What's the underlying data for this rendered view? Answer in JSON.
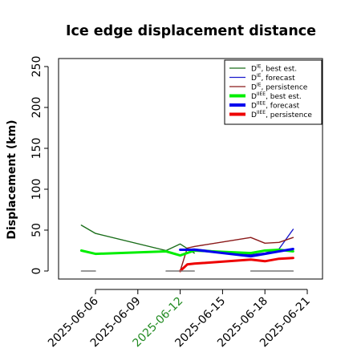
{
  "chart_data": {
    "type": "line",
    "title": "Ice edge displacement distance",
    "xlabel": "",
    "ylabel": "Displacement (km)",
    "ylim": [
      0,
      260
    ],
    "y_ticks": [
      0,
      50,
      100,
      150,
      200,
      250
    ],
    "x_ticks": [
      {
        "label": "2025-06-06",
        "color": "#000000"
      },
      {
        "label": "2025-06-09",
        "color": "#000000"
      },
      {
        "label": "2025-06-12",
        "color": "#228B22"
      },
      {
        "label": "2025-06-15",
        "color": "#000000"
      },
      {
        "label": "2025-06-18",
        "color": "#000000"
      },
      {
        "label": "2025-06-21",
        "color": "#000000"
      }
    ],
    "grid": false,
    "legend_position": "top-right",
    "legend": [
      {
        "sym": "D",
        "sup": "IE",
        "text": ", best est.",
        "color": "#1a6e1a",
        "weight": "thin"
      },
      {
        "sym": "D",
        "sup": "IE",
        "text": ", forecast",
        "color": "#1a1acc",
        "weight": "thin"
      },
      {
        "sym": "D",
        "sup": "IE",
        "text": ", persistence",
        "color": "#8b1a1a",
        "weight": "thin"
      },
      {
        "sym": "D",
        "sup": "IIEE",
        "text": ", best est.",
        "color": "#00ee00",
        "weight": "thick"
      },
      {
        "sym": "D",
        "sup": "IIEE",
        "text": ", forecast",
        "color": "#0000ee",
        "weight": "thick"
      },
      {
        "sym": "D",
        "sup": "IIEE",
        "text": ", persistence",
        "color": "#ee0000",
        "weight": "thick"
      }
    ],
    "series": [
      {
        "color": "#1a6e1a",
        "width": 1.4,
        "points": [
          [
            "2025-06-05",
            56
          ],
          [
            "2025-06-06",
            46
          ],
          [
            "2025-06-11",
            25
          ],
          [
            "2025-06-12",
            33
          ],
          [
            "2025-06-13",
            22
          ]
        ]
      },
      {
        "color": "#1a6e1a",
        "width": 0.7,
        "points": [
          [
            "2025-06-06",
            46
          ],
          [
            "2025-06-11",
            25
          ]
        ]
      },
      {
        "color": "#1a1acc",
        "width": 1.4,
        "points": [
          [
            "2025-06-12",
            26
          ],
          [
            "2025-06-13",
            27
          ],
          [
            "2025-06-17",
            20
          ],
          [
            "2025-06-18",
            22
          ],
          [
            "2025-06-19",
            27
          ],
          [
            "2025-06-20",
            51
          ]
        ]
      },
      {
        "color": "#8b1a1a",
        "width": 1.4,
        "points": [
          [
            "2025-06-12",
            0
          ],
          [
            "2025-06-12.5",
            28
          ],
          [
            "2025-06-13",
            30
          ],
          [
            "2025-06-17",
            41
          ],
          [
            "2025-06-18",
            34
          ],
          [
            "2025-06-19",
            35
          ],
          [
            "2025-06-20",
            41
          ]
        ]
      },
      {
        "color": "#8b1a1a",
        "width": 0.7,
        "points": [
          [
            "2025-06-13",
            30
          ],
          [
            "2025-06-17",
            41
          ]
        ]
      },
      {
        "color": "#00ee00",
        "width": 3,
        "points": [
          [
            "2025-06-05",
            25
          ],
          [
            "2025-06-06",
            21
          ],
          [
            "2025-06-11",
            24
          ],
          [
            "2025-06-12",
            19
          ],
          [
            "2025-06-13",
            25
          ],
          [
            "2025-06-17",
            22
          ],
          [
            "2025-06-18",
            25
          ],
          [
            "2025-06-19",
            26
          ],
          [
            "2025-06-20",
            24
          ]
        ]
      },
      {
        "color": "#0000ee",
        "width": 3,
        "points": [
          [
            "2025-06-12",
            26
          ],
          [
            "2025-06-13",
            26
          ],
          [
            "2025-06-17",
            18
          ],
          [
            "2025-06-18",
            21
          ],
          [
            "2025-06-19",
            24
          ],
          [
            "2025-06-20",
            27
          ]
        ]
      },
      {
        "color": "#ee0000",
        "width": 3,
        "points": [
          [
            "2025-06-12",
            0
          ],
          [
            "2025-06-12.5",
            8
          ],
          [
            "2025-06-13",
            9
          ],
          [
            "2025-06-17",
            14
          ],
          [
            "2025-06-18",
            12
          ],
          [
            "2025-06-19",
            15
          ],
          [
            "2025-06-20",
            16
          ]
        ]
      },
      {
        "color": "#777777",
        "width": 1.5,
        "points": [
          [
            "2025-06-05",
            0
          ],
          [
            "2025-06-06",
            0
          ]
        ]
      },
      {
        "color": "#777777",
        "width": 1.5,
        "points": [
          [
            "2025-06-11",
            0
          ],
          [
            "2025-06-13",
            0
          ]
        ]
      },
      {
        "color": "#777777",
        "width": 1.5,
        "points": [
          [
            "2025-06-17",
            0
          ],
          [
            "2025-06-20",
            0
          ]
        ]
      }
    ]
  }
}
